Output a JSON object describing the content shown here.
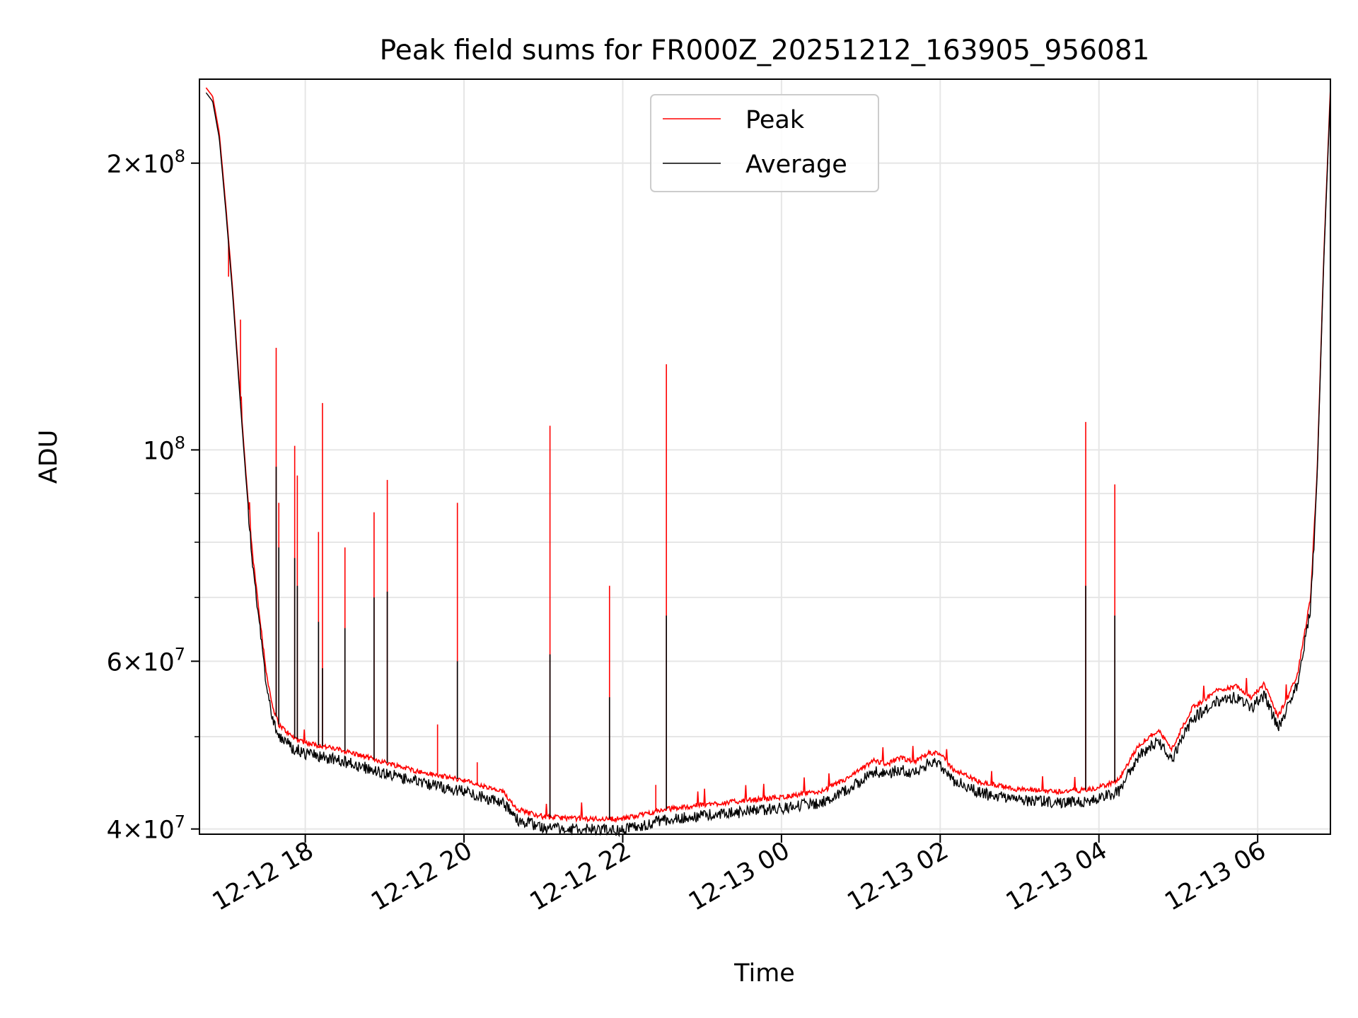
{
  "chart_data": {
    "type": "line",
    "title": "Peak field sums for FR000Z_20251212_163905_956081",
    "xlabel": "Time",
    "ylabel": "ADU",
    "yscale": "log",
    "ylim": [
      39500000,
      245000000
    ],
    "xlim": [
      "2025-12-12 16:40",
      "2025-12-13 06:55"
    ],
    "grid": true,
    "legend": "top-center",
    "x_ticks": [
      {
        "value": "2025-12-12 18:00",
        "label": "12-12 18"
      },
      {
        "value": "2025-12-12 20:00",
        "label": "12-12 20"
      },
      {
        "value": "2025-12-12 22:00",
        "label": "12-12 22"
      },
      {
        "value": "2025-12-13 00:00",
        "label": "12-13 00"
      },
      {
        "value": "2025-12-13 02:00",
        "label": "12-13 02"
      },
      {
        "value": "2025-12-13 04:00",
        "label": "12-13 04"
      },
      {
        "value": "2025-12-13 06:00",
        "label": "12-13 06"
      }
    ],
    "y_ticks": [
      {
        "value": 40000000,
        "mant": "4",
        "exp": "7"
      },
      {
        "value": 60000000,
        "mant": "6",
        "exp": "7"
      },
      {
        "value": 100000000,
        "mant": "",
        "exp": "8"
      },
      {
        "value": 200000000,
        "mant": "2",
        "exp": "8"
      }
    ],
    "series": [
      {
        "name": "Peak",
        "color": "#ff0000",
        "baseline": [
          [
            "2025-12-12 16:45",
            240000000
          ],
          [
            "2025-12-12 16:50",
            235000000
          ],
          [
            "2025-12-12 16:55",
            215000000
          ],
          [
            "2025-12-12 17:00",
            180000000
          ],
          [
            "2025-12-12 17:05",
            148000000
          ],
          [
            "2025-12-12 17:10",
            118000000
          ],
          [
            "2025-12-12 17:15",
            95000000
          ],
          [
            "2025-12-12 17:20",
            78000000
          ],
          [
            "2025-12-12 17:25",
            68000000
          ],
          [
            "2025-12-12 17:30",
            59000000
          ],
          [
            "2025-12-12 17:35",
            54000000
          ],
          [
            "2025-12-12 17:40",
            51500000
          ],
          [
            "2025-12-12 17:50",
            50000000
          ],
          [
            "2025-12-12 18:00",
            49300000
          ],
          [
            "2025-12-12 18:30",
            48300000
          ],
          [
            "2025-12-12 19:00",
            47000000
          ],
          [
            "2025-12-12 19:30",
            45800000
          ],
          [
            "2025-12-12 20:00",
            45000000
          ],
          [
            "2025-12-12 20:15",
            44300000
          ],
          [
            "2025-12-12 20:30",
            43700000
          ],
          [
            "2025-12-12 20:40",
            42000000
          ],
          [
            "2025-12-12 21:00",
            41200000
          ],
          [
            "2025-12-12 21:30",
            41000000
          ],
          [
            "2025-12-12 22:00",
            41000000
          ],
          [
            "2025-12-12 22:30",
            41900000
          ],
          [
            "2025-12-12 23:00",
            42400000
          ],
          [
            "2025-12-12 23:30",
            42800000
          ],
          [
            "2025-12-13 00:00",
            43200000
          ],
          [
            "2025-12-13 00:30",
            43800000
          ],
          [
            "2025-12-13 00:50",
            45200000
          ],
          [
            "2025-12-13 01:10",
            47200000
          ],
          [
            "2025-12-13 01:20",
            46800000
          ],
          [
            "2025-12-13 01:30",
            47500000
          ],
          [
            "2025-12-13 01:40",
            47000000
          ],
          [
            "2025-12-13 01:50",
            48000000
          ],
          [
            "2025-12-13 01:58",
            48200000
          ],
          [
            "2025-12-13 02:10",
            46200000
          ],
          [
            "2025-12-13 02:30",
            44800000
          ],
          [
            "2025-12-13 03:00",
            44000000
          ],
          [
            "2025-12-13 03:30",
            43800000
          ],
          [
            "2025-12-13 03:55",
            44000000
          ],
          [
            "2025-12-13 04:15",
            45000000
          ],
          [
            "2025-12-13 04:30",
            49000000
          ],
          [
            "2025-12-13 04:45",
            50800000
          ],
          [
            "2025-12-13 04:55",
            48500000
          ],
          [
            "2025-12-13 05:10",
            53500000
          ],
          [
            "2025-12-13 05:30",
            56000000
          ],
          [
            "2025-12-13 05:45",
            56500000
          ],
          [
            "2025-12-13 05:55",
            55000000
          ],
          [
            "2025-12-13 06:05",
            56800000
          ],
          [
            "2025-12-13 06:15",
            52500000
          ],
          [
            "2025-12-13 06:20",
            54000000
          ],
          [
            "2025-12-13 06:30",
            58000000
          ],
          [
            "2025-12-13 06:40",
            70000000
          ],
          [
            "2025-12-13 06:45",
            95000000
          ],
          [
            "2025-12-13 06:50",
            160000000
          ],
          [
            "2025-12-13 06:55",
            240000000
          ]
        ],
        "spikes": [
          [
            "2025-12-12 17:02",
            152000000
          ],
          [
            "2025-12-12 17:11",
            137000000
          ],
          [
            "2025-12-12 17:38",
            128000000
          ],
          [
            "2025-12-12 17:40",
            88000000
          ],
          [
            "2025-12-12 17:52",
            101000000
          ],
          [
            "2025-12-12 17:54",
            94000000
          ],
          [
            "2025-12-12 18:10",
            82000000
          ],
          [
            "2025-12-12 18:13",
            112000000
          ],
          [
            "2025-12-12 18:30",
            79000000
          ],
          [
            "2025-12-12 18:52",
            86000000
          ],
          [
            "2025-12-12 19:02",
            93000000
          ],
          [
            "2025-12-12 19:40",
            51500000
          ],
          [
            "2025-12-12 19:55",
            88000000
          ],
          [
            "2025-12-12 20:10",
            47000000
          ],
          [
            "2025-12-12 21:05",
            106000000
          ],
          [
            "2025-12-12 21:50",
            72000000
          ],
          [
            "2025-12-12 22:33",
            123000000
          ],
          [
            "2025-12-12 22:25",
            44500000
          ],
          [
            "2025-12-13 03:50",
            107000000
          ],
          [
            "2025-12-13 04:12",
            92000000
          ]
        ]
      },
      {
        "name": "Average",
        "color": "#000000",
        "spikes": [
          [
            "2025-12-12 17:38",
            96000000
          ],
          [
            "2025-12-12 17:40",
            79000000
          ],
          [
            "2025-12-12 17:52",
            77000000
          ],
          [
            "2025-12-12 17:54",
            72000000
          ],
          [
            "2025-12-12 18:10",
            66000000
          ],
          [
            "2025-12-12 18:13",
            59000000
          ],
          [
            "2025-12-12 18:30",
            65000000
          ],
          [
            "2025-12-12 18:52",
            70000000
          ],
          [
            "2025-12-12 19:02",
            71000000
          ],
          [
            "2025-12-12 19:55",
            60000000
          ],
          [
            "2025-12-12 21:05",
            61000000
          ],
          [
            "2025-12-12 21:50",
            55000000
          ],
          [
            "2025-12-12 22:33",
            67000000
          ],
          [
            "2025-12-13 03:50",
            72000000
          ],
          [
            "2025-12-13 04:12",
            67000000
          ]
        ]
      }
    ]
  }
}
